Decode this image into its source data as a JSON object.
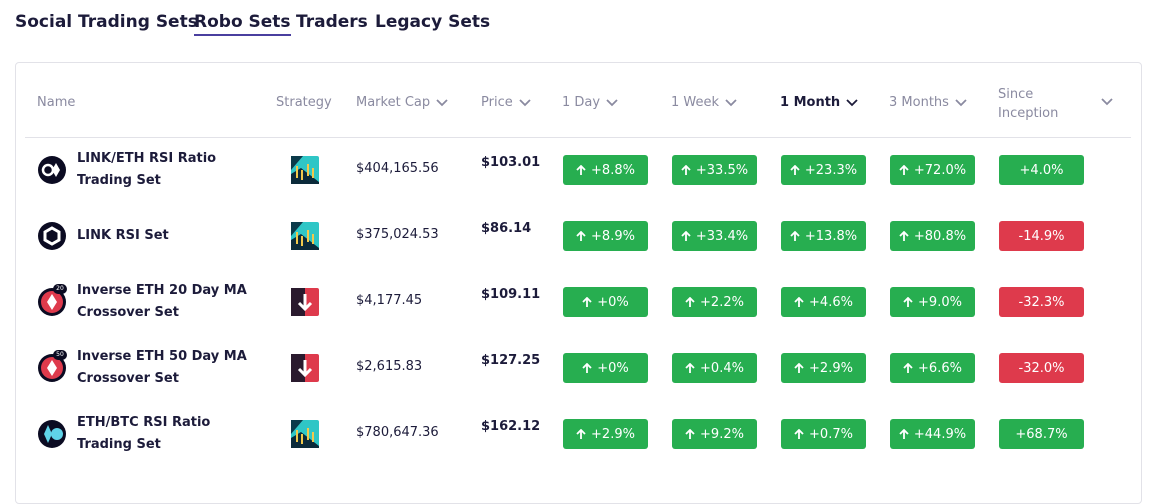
{
  "tabs": [
    "Social Trading Sets",
    "Robo Sets",
    "Traders",
    "Legacy Sets"
  ],
  "active_tab": 1,
  "headers": [
    "Name",
    "Strategy",
    "Market Cap",
    "Price",
    "1 Day",
    "1 Week",
    "1 Month",
    "3 Months",
    "Since Inception"
  ],
  "active_header": 6,
  "rows": [
    {
      "name": "LINK/ETH RSI Ratio Trading Set",
      "market_cap": "$404,165.56",
      "price": "$103.01",
      "changes": [
        "+8.8%",
        "+33.5%",
        "+23.3%",
        "+72.0%",
        "+4.0%"
      ]
    },
    {
      "name": "LINK RSI Set",
      "market_cap": "$375,024.53",
      "price": "$86.14",
      "changes": [
        "+8.9%",
        "+33.4%",
        "+13.8%",
        "+80.8%",
        "-14.9%"
      ]
    },
    {
      "name": "Inverse ETH 20 Day MA Crossover Set",
      "badge": "20",
      "market_cap": "$4,177.45",
      "price": "$109.11",
      "changes": [
        "+0%",
        "+2.2%",
        "+4.6%",
        "+9.0%",
        "-32.3%"
      ]
    },
    {
      "name": "Inverse ETH 50 Day MA Crossover Set",
      "badge": "50",
      "market_cap": "$2,615.83",
      "price": "$127.25",
      "changes": [
        "+0%",
        "+0.4%",
        "+2.9%",
        "+6.6%",
        "-32.0%"
      ]
    },
    {
      "name": "ETH/BTC RSI Ratio Trading Set",
      "market_cap": "$780,647.36",
      "price": "$162.12",
      "changes": [
        "+2.9%",
        "+9.2%",
        "+0.7%",
        "+44.9%",
        "+68.7%"
      ]
    }
  ]
}
